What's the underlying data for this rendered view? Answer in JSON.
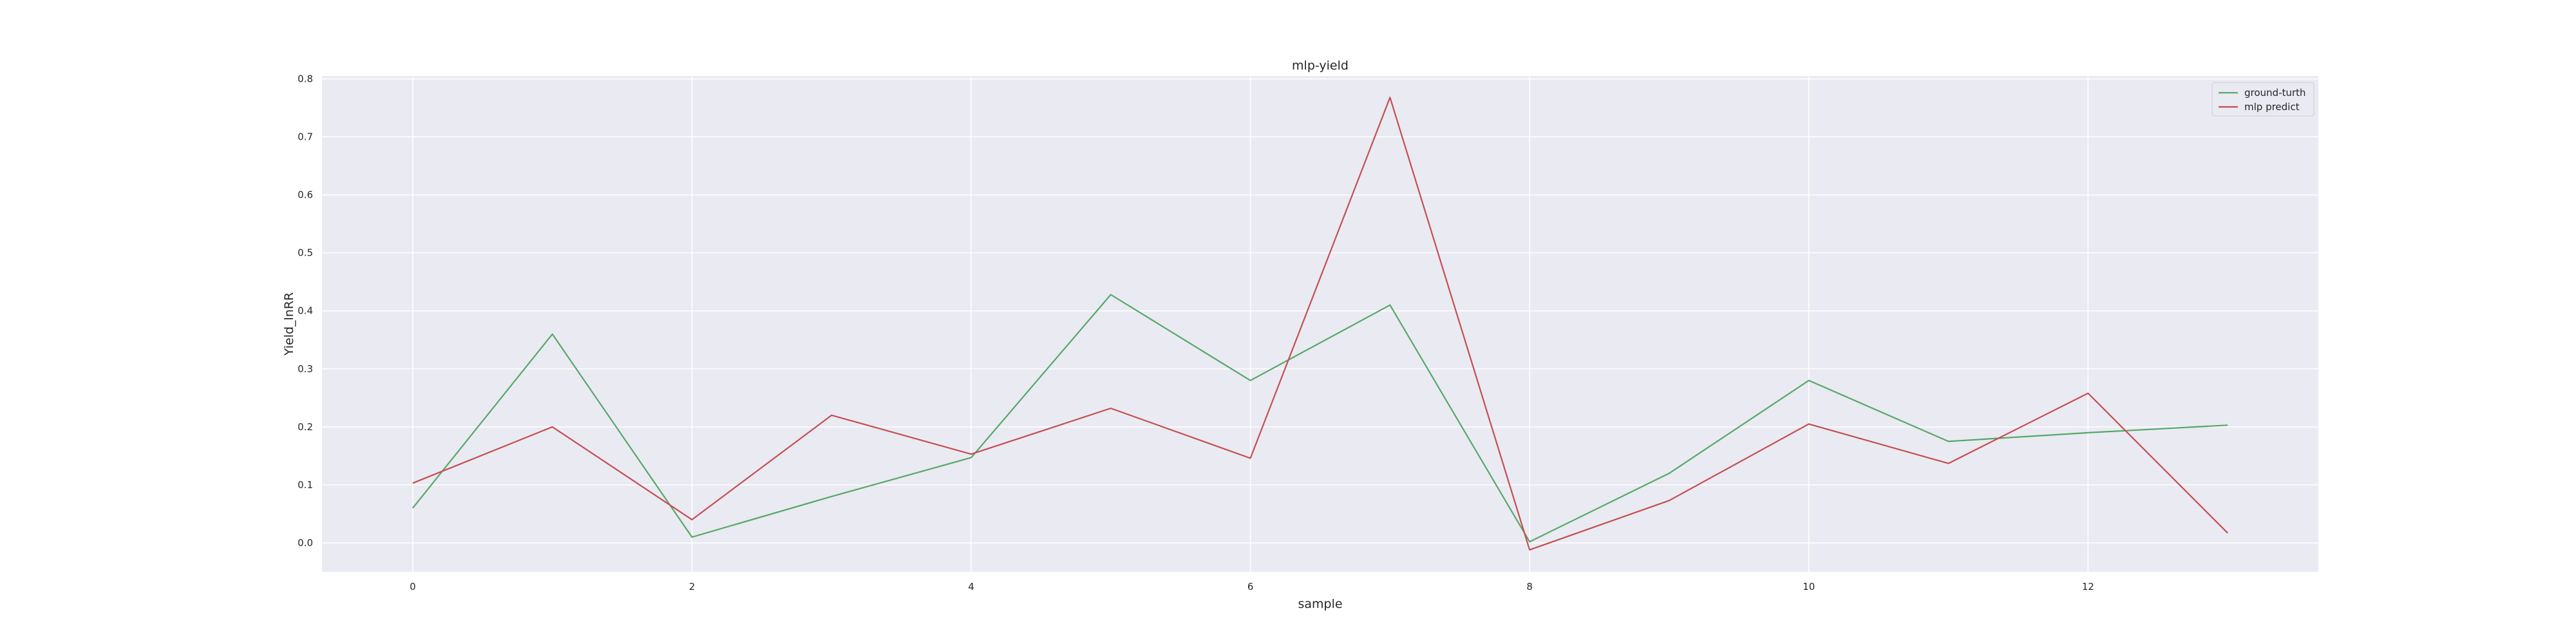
{
  "chart_data": {
    "type": "line",
    "title": "mlp-yield",
    "xlabel": "sample",
    "ylabel": "Yield_lnRR",
    "x": [
      0,
      1,
      2,
      3,
      4,
      5,
      6,
      7,
      8,
      9,
      10,
      11,
      12,
      13
    ],
    "xticks": [
      0,
      2,
      4,
      6,
      8,
      10,
      12
    ],
    "yticks": [
      0.0,
      0.1,
      0.2,
      0.3,
      0.4,
      0.5,
      0.6,
      0.7,
      0.8
    ],
    "xlim": [
      -0.65,
      13.65
    ],
    "ylim": [
      -0.05,
      0.805
    ],
    "grid": true,
    "legend_position": "upper right",
    "series": [
      {
        "name": "ground-turth",
        "color": "#55a868",
        "values": [
          0.06,
          0.36,
          0.01,
          0.08,
          0.147,
          0.428,
          0.28,
          0.41,
          0.002,
          0.12,
          0.28,
          0.175,
          0.19,
          0.203
        ]
      },
      {
        "name": "mlp predict",
        "color": "#c44e52",
        "values": [
          0.103,
          0.2,
          0.04,
          0.22,
          0.153,
          0.232,
          0.146,
          0.768,
          -0.012,
          0.073,
          0.205,
          0.137,
          0.258,
          0.017
        ]
      }
    ],
    "colors": {
      "plot_background": "#eaeaf2",
      "grid": "#ffffff",
      "text": "#262626"
    }
  }
}
